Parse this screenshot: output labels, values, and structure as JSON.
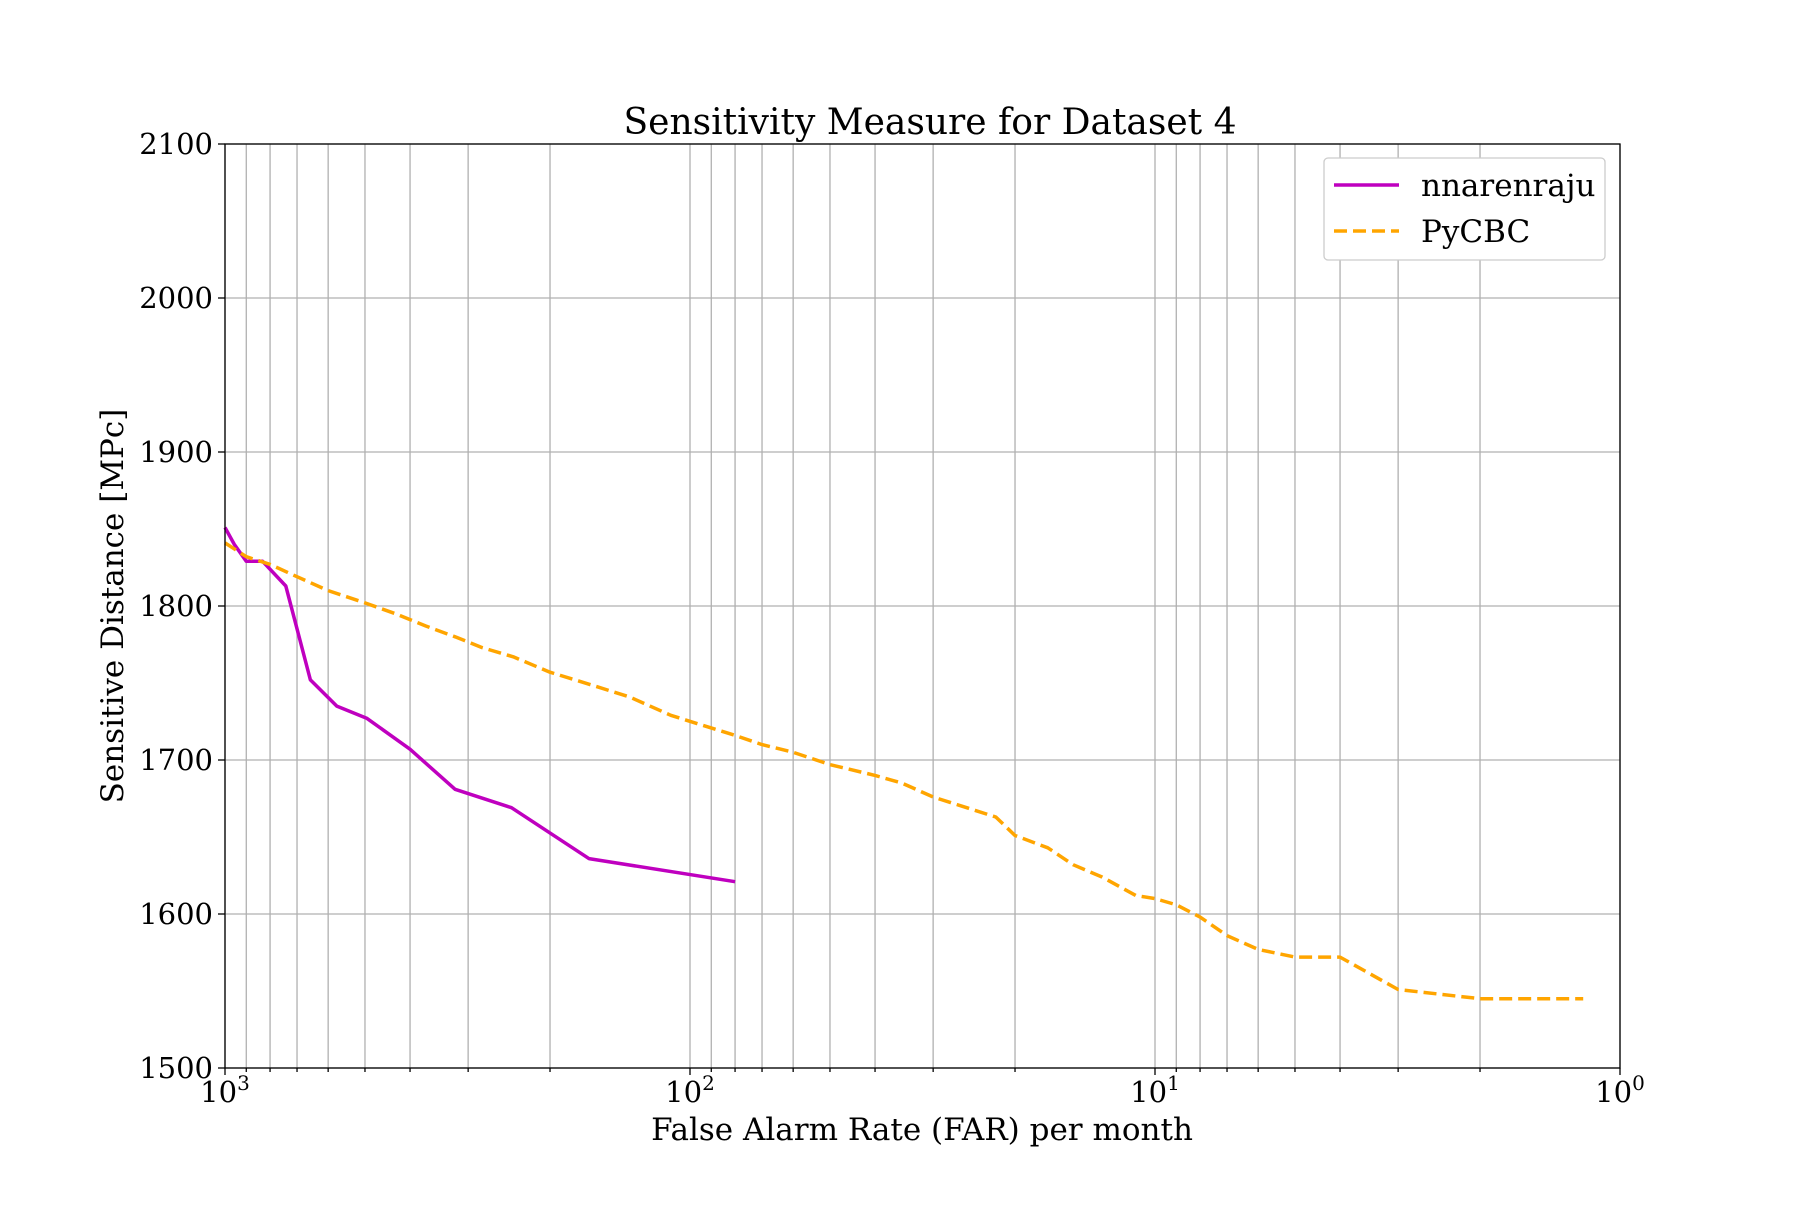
{
  "chart_data": {
    "type": "line",
    "title": "Sensitivity Measure for Dataset 4",
    "xlabel": "False Alarm Rate (FAR) per month",
    "ylabel": "Sensitive Distance [MPc]",
    "x_scale": "log",
    "x_reversed": true,
    "xlim": [
      1000,
      1
    ],
    "ylim": [
      1500,
      2100
    ],
    "grid": true,
    "minor_grid_x": true,
    "legend_position": "top-right",
    "x_ticks": [
      {
        "value": 1000,
        "base": "10",
        "exp": "3"
      },
      {
        "value": 100,
        "base": "10",
        "exp": "2"
      },
      {
        "value": 10,
        "base": "10",
        "exp": "1"
      },
      {
        "value": 1,
        "base": "10",
        "exp": "0"
      }
    ],
    "y_ticks": [
      1500,
      1600,
      1700,
      1800,
      1900,
      2000,
      2100
    ],
    "series": [
      {
        "name": "nnarenraju",
        "color": "#bf00bf",
        "style": "solid",
        "x": [
          1000,
          955,
          900,
          830,
          740,
          655,
          575,
          495,
          400,
          320,
          242,
          165,
          80
        ],
        "y": [
          1851,
          1840,
          1829,
          1829,
          1813,
          1752,
          1735,
          1727,
          1707,
          1681,
          1669,
          1636,
          1621
        ]
      },
      {
        "name": "PyCBC",
        "color": "#ffa500",
        "style": "dashed",
        "x": [
          1000,
          900,
          800,
          700,
          600,
          500,
          430,
          370,
          320,
          280,
          240,
          200,
          160,
          135,
          110,
          95,
          80,
          70,
          60,
          50,
          40,
          35,
          30,
          26,
          22,
          20,
          17,
          15,
          13,
          11,
          10,
          9,
          8,
          7,
          6,
          5,
          4,
          3,
          2,
          1.2
        ],
        "y": [
          1841,
          1832,
          1827,
          1819,
          1810,
          1802,
          1795,
          1787,
          1780,
          1773,
          1767,
          1757,
          1748,
          1741,
          1729,
          1723,
          1716,
          1710,
          1705,
          1697,
          1690,
          1685,
          1676,
          1670,
          1663,
          1651,
          1643,
          1632,
          1624,
          1612,
          1610,
          1606,
          1598,
          1586,
          1577,
          1572,
          1572,
          1551,
          1545,
          1545
        ]
      }
    ]
  }
}
